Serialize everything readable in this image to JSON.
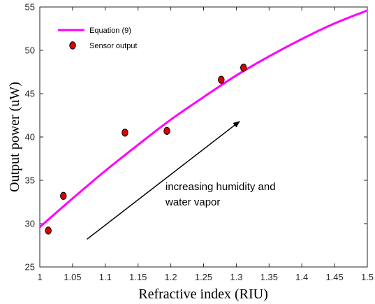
{
  "chart_data": {
    "type": "line",
    "xlabel": "Refractive index (RIU)",
    "ylabel": "Output power (uW)",
    "xlim": [
      1,
      1.5
    ],
    "ylim": [
      25,
      55
    ],
    "x_ticks": [
      "1",
      "1.05",
      "1.1",
      "1.15",
      "1.2",
      "1.25",
      "1.3",
      "1.35",
      "1.4",
      "1.45",
      "1.5"
    ],
    "y_ticks": [
      "25",
      "30",
      "35",
      "40",
      "45",
      "50",
      "55"
    ],
    "grid": false,
    "legend_position": "top-left",
    "series": [
      {
        "name": "Equation (9)",
        "kind": "line",
        "color": "#ff00ff",
        "x": [
          1.0,
          1.05,
          1.1,
          1.15,
          1.2,
          1.25,
          1.3,
          1.35,
          1.4,
          1.45,
          1.5
        ],
        "y": [
          29.6,
          32.9,
          36.1,
          39.1,
          42.0,
          44.6,
          47.1,
          49.3,
          51.3,
          53.1,
          54.6
        ]
      },
      {
        "name": "Sensor output",
        "kind": "scatter",
        "color": "#dd0000",
        "x": [
          1.013,
          1.036,
          1.13,
          1.194,
          1.277,
          1.311
        ],
        "y": [
          29.2,
          33.2,
          40.5,
          40.7,
          46.6,
          48.0
        ]
      }
    ],
    "annotations": [
      {
        "text_lines": [
          "increasing humidity and",
          "water vapor"
        ],
        "arrow": {
          "from": [
            1.072,
            28.2
          ],
          "to": [
            1.305,
            41.8
          ]
        }
      }
    ]
  }
}
